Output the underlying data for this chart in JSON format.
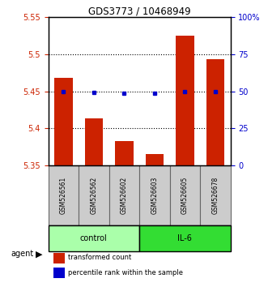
{
  "title": "GDS3773 / 10468949",
  "samples": [
    "GSM526561",
    "GSM526562",
    "GSM526602",
    "GSM526603",
    "GSM526605",
    "GSM526678"
  ],
  "red_values": [
    5.468,
    5.413,
    5.383,
    5.365,
    5.525,
    5.493
  ],
  "blue_values": [
    5.45,
    5.448,
    5.447,
    5.447,
    5.45,
    5.45
  ],
  "ylim_left": [
    5.35,
    5.55
  ],
  "ylim_right": [
    0,
    100
  ],
  "yticks_left": [
    5.35,
    5.4,
    5.45,
    5.5,
    5.55
  ],
  "yticks_right": [
    0,
    25,
    50,
    75,
    100
  ],
  "ytick_labels_left": [
    "5.35",
    "5.4",
    "5.45",
    "5.5",
    "5.55"
  ],
  "ytick_labels_right": [
    "0",
    "25",
    "50",
    "75",
    "100%"
  ],
  "hlines": [
    5.4,
    5.45,
    5.5
  ],
  "groups": [
    {
      "label": "control",
      "indices": [
        0,
        1,
        2
      ],
      "color": "#AAFFAA"
    },
    {
      "label": "IL-6",
      "indices": [
        3,
        4,
        5
      ],
      "color": "#33DD33"
    }
  ],
  "red_color": "#CC2200",
  "blue_color": "#0000CC",
  "bar_width": 0.6,
  "agent_label": "agent",
  "legend_red": "transformed count",
  "legend_blue": "percentile rank within the sample",
  "sample_box_color": "#CCCCCC",
  "sample_box_edge": "#888888"
}
